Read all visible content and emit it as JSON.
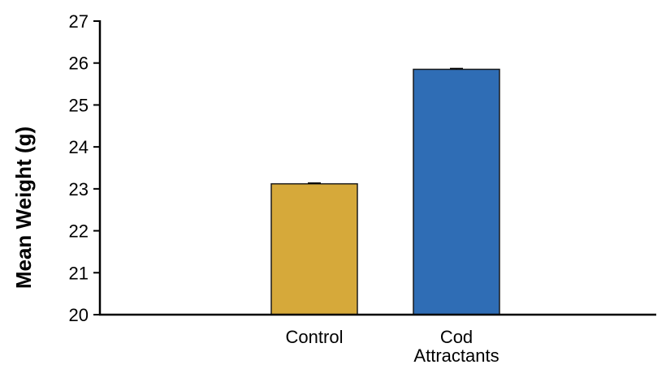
{
  "chart_data": {
    "type": "bar",
    "title": "",
    "xlabel": "",
    "ylabel": "Mean Weight (g)",
    "ylim": [
      20,
      27
    ],
    "yticks": [
      "20",
      "21",
      "22",
      "23",
      "24",
      "25",
      "26",
      "27"
    ],
    "categories": [
      {
        "label_lines": [
          "Control"
        ],
        "value": 23.12,
        "error": 0.02,
        "color": "#D6A93A"
      },
      {
        "label_lines": [
          "Cod",
          "Attractants"
        ],
        "value": 25.85,
        "error": 0.02,
        "color": "#2F6DB5"
      }
    ],
    "grid": false,
    "legend": "none"
  }
}
